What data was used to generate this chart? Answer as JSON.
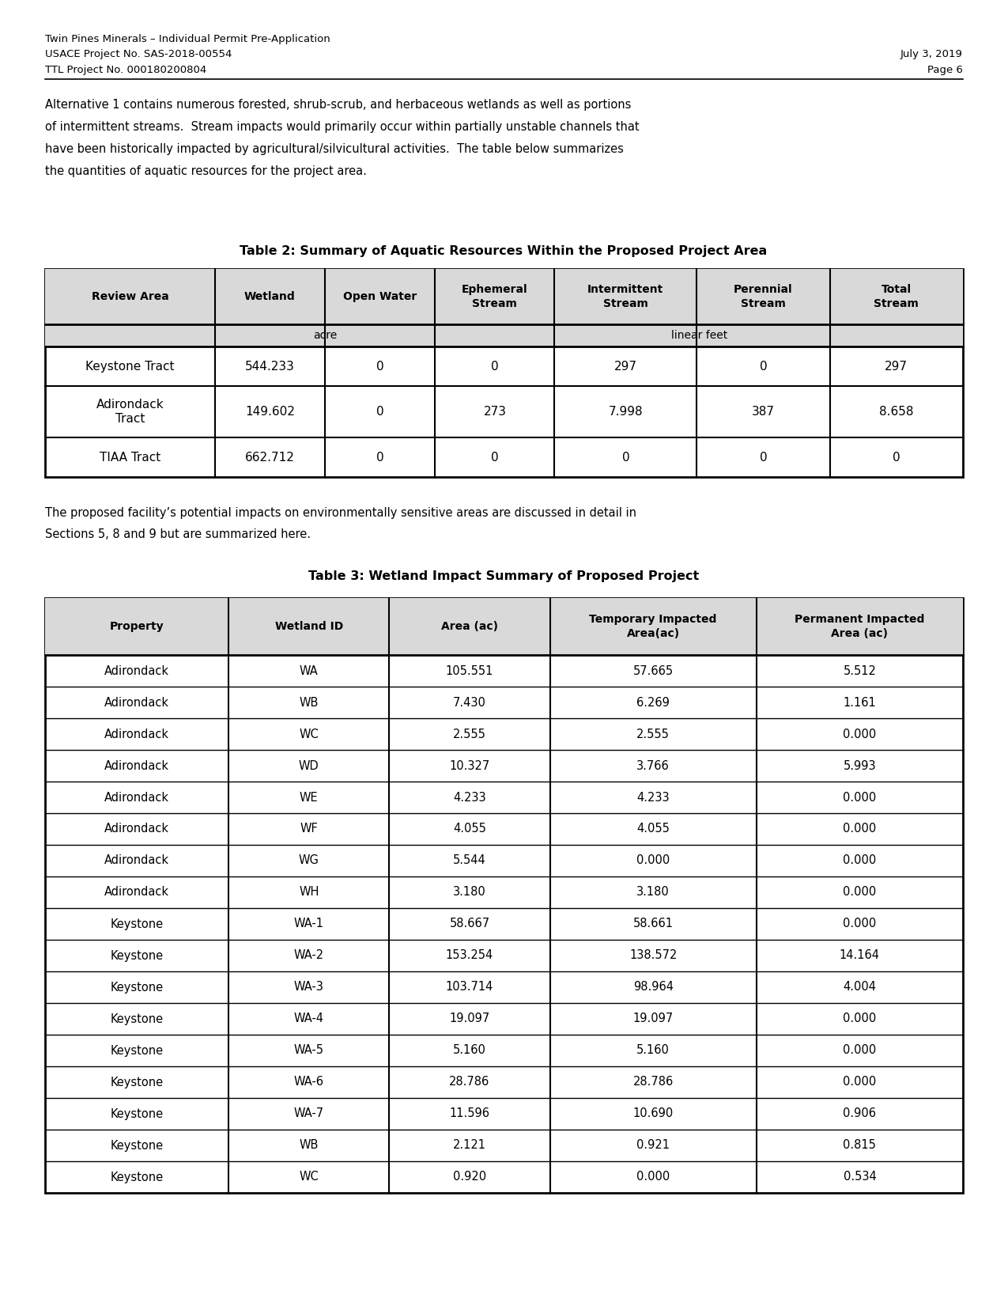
{
  "header_line1": "Twin Pines Minerals – Individual Permit Pre-Application",
  "header_line2": "USACE Project No. SAS-2018-00554",
  "header_line2_right": "July 3, 2019",
  "header_line3": "TTL Project No. 000180200804",
  "header_line3_right": "Page 6",
  "paragraph1": "Alternative 1 contains numerous forested, shrub-scrub, and herbaceous wetlands as well as portions\nof intermittent streams.  Stream impacts would primarily occur within partially unstable channels that\nhave been historically impacted by agricultural/silvicultural activities.  The table below summarizes\nthe quantities of aquatic resources for the project area.",
  "table2_title": "Table 2: Summary of Aquatic Resources Within the Proposed Project Area",
  "table2_col_headers": [
    "Review Area",
    "Wetland",
    "Open Water",
    "Ephemeral\nStream",
    "Intermittent\nStream",
    "Perennial\nStream",
    "Total\nStream"
  ],
  "table2_subheader_acre": "acre",
  "table2_subheader_lf": "linear feet",
  "table2_rows": [
    [
      "Keystone Tract",
      "544.233",
      "0",
      "0",
      "297",
      "0",
      "297"
    ],
    [
      "Adirondack\nTract",
      "149.602",
      "0",
      "273",
      "7.998",
      "387",
      "8.658"
    ],
    [
      "TIAA Tract",
      "662.712",
      "0",
      "0",
      "0",
      "0",
      "0"
    ]
  ],
  "paragraph2": "The proposed facility’s potential impacts on environmentally sensitive areas are discussed in detail in\nSections 5, 8 and 9 but are summarized here.",
  "table3_title": "Table 3: Wetland Impact Summary of Proposed Project",
  "table3_col_headers": [
    "Property",
    "Wetland ID",
    "Area (ac)",
    "Temporary Impacted\nArea(ac)",
    "Permanent Impacted\nArea (ac)"
  ],
  "table3_rows": [
    [
      "Adirondack",
      "WA",
      "105.551",
      "57.665",
      "5.512"
    ],
    [
      "Adirondack",
      "WB",
      "7.430",
      "6.269",
      "1.161"
    ],
    [
      "Adirondack",
      "WC",
      "2.555",
      "2.555",
      "0.000"
    ],
    [
      "Adirondack",
      "WD",
      "10.327",
      "3.766",
      "5.993"
    ],
    [
      "Adirondack",
      "WE",
      "4.233",
      "4.233",
      "0.000"
    ],
    [
      "Adirondack",
      "WF",
      "4.055",
      "4.055",
      "0.000"
    ],
    [
      "Adirondack",
      "WG",
      "5.544",
      "0.000",
      "0.000"
    ],
    [
      "Adirondack",
      "WH",
      "3.180",
      "3.180",
      "0.000"
    ],
    [
      "Keystone",
      "WA-1",
      "58.667",
      "58.661",
      "0.000"
    ],
    [
      "Keystone",
      "WA-2",
      "153.254",
      "138.572",
      "14.164"
    ],
    [
      "Keystone",
      "WA-3",
      "103.714",
      "98.964",
      "4.004"
    ],
    [
      "Keystone",
      "WA-4",
      "19.097",
      "19.097",
      "0.000"
    ],
    [
      "Keystone",
      "WA-5",
      "5.160",
      "5.160",
      "0.000"
    ],
    [
      "Keystone",
      "WA-6",
      "28.786",
      "28.786",
      "0.000"
    ],
    [
      "Keystone",
      "WA-7",
      "11.596",
      "10.690",
      "0.906"
    ],
    [
      "Keystone",
      "WB",
      "2.121",
      "0.921",
      "0.815"
    ],
    [
      "Keystone",
      "WC",
      "0.920",
      "0.000",
      "0.534"
    ]
  ],
  "bg_color": "#ffffff",
  "header_bg": "#d9d9d9",
  "border_color": "#000000"
}
